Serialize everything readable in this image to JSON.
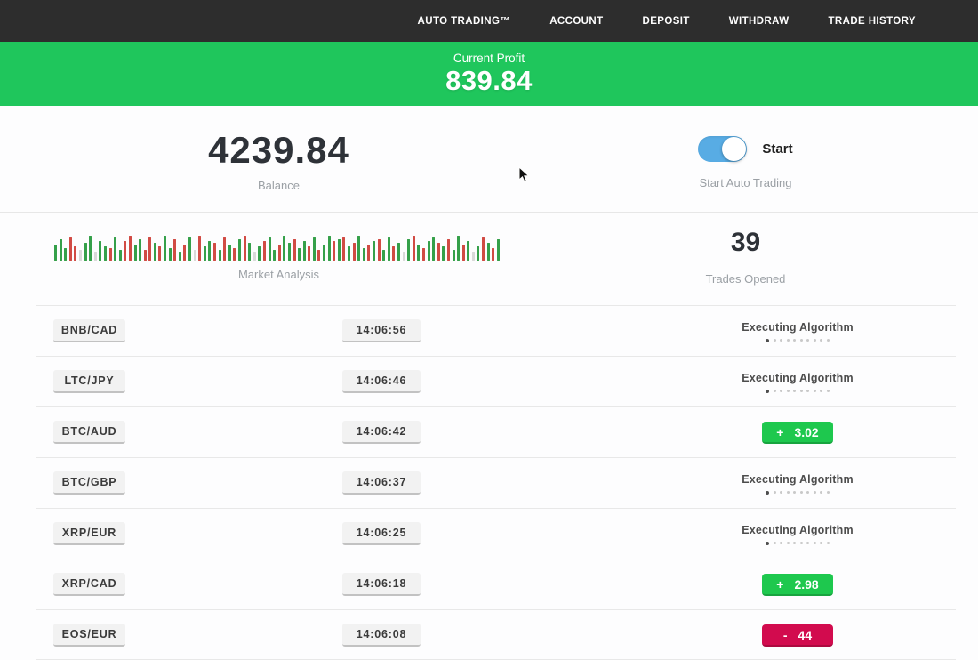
{
  "nav": {
    "items": [
      "AUTO TRADING™",
      "ACCOUNT",
      "DEPOSIT",
      "WITHDRAW",
      "TRADE HISTORY"
    ]
  },
  "profit_banner": {
    "label": "Current Profit",
    "value": "839.84"
  },
  "account": {
    "balance": "4239.84",
    "balance_label": "Balance",
    "toggle_label": "Start",
    "toggle_caption": "Start Auto Trading",
    "toggle_state": "on"
  },
  "market": {
    "label": "Market Analysis",
    "trades_opened": "39",
    "trades_opened_label": "Trades Opened",
    "bars": [
      "g18",
      "g24",
      "g14",
      "r26",
      "r16",
      "n12",
      "g20",
      "g28",
      "n10",
      "g22",
      "g16",
      "r14",
      "g26",
      "g12",
      "r22",
      "r28",
      "g18",
      "g24",
      "r12",
      "r26",
      "g20",
      "r16",
      "g28",
      "g14",
      "r24",
      "g10",
      "r18",
      "g26",
      "n12",
      "r28",
      "g16",
      "g22",
      "r20",
      "g12",
      "r26",
      "g18",
      "r14",
      "g24",
      "r28",
      "g20",
      "n10",
      "g16",
      "r22",
      "g26",
      "g12",
      "r18",
      "g28",
      "g20",
      "r24",
      "g14",
      "g22",
      "r16",
      "g26",
      "r12",
      "g18",
      "g28",
      "r22",
      "g24",
      "r26",
      "g16",
      "r20",
      "g28",
      "g14",
      "r18",
      "g22",
      "r24",
      "g12",
      "g26",
      "r16",
      "g20",
      "n10",
      "g24",
      "r28",
      "g18",
      "r14",
      "g22",
      "g26",
      "r20",
      "g16",
      "r24",
      "g12",
      "g28",
      "r18",
      "g22",
      "n10",
      "g16",
      "r26",
      "g20",
      "r14",
      "g24"
    ]
  },
  "trades": [
    {
      "pair": "BNB/CAD",
      "time": "14:06:56",
      "status": "executing",
      "status_label": "Executing Algorithm"
    },
    {
      "pair": "LTC/JPY",
      "time": "14:06:46",
      "status": "executing",
      "status_label": "Executing Algorithm"
    },
    {
      "pair": "BTC/AUD",
      "time": "14:06:42",
      "status": "profit",
      "sign": "+",
      "value": "3.02"
    },
    {
      "pair": "BTC/GBP",
      "time": "14:06:37",
      "status": "executing",
      "status_label": "Executing Algorithm"
    },
    {
      "pair": "XRP/EUR",
      "time": "14:06:25",
      "status": "executing",
      "status_label": "Executing Algorithm"
    },
    {
      "pair": "XRP/CAD",
      "time": "14:06:18",
      "status": "profit",
      "sign": "+",
      "value": "2.98"
    },
    {
      "pair": "EOS/EUR",
      "time": "14:06:08",
      "status": "loss",
      "sign": "-",
      "value": "44"
    }
  ],
  "colors": {
    "nav_bg": "#2d2d2d",
    "banner_green": "#1fc65c",
    "profit_green": "#1ec84e",
    "loss_red": "#d20b4e",
    "toggle_blue": "#58ace4",
    "bar_green": "#35a04a",
    "bar_red": "#d14b44",
    "bar_neutral": "#d9d9d9"
  }
}
